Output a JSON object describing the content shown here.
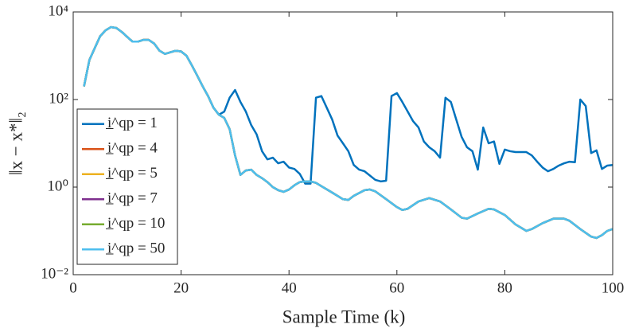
{
  "chart_data": {
    "type": "line",
    "xlabel": "Sample Time (k)",
    "ylabel": "‖x − x*‖₂",
    "xlim": [
      0,
      100
    ],
    "xticks": [
      0,
      20,
      40,
      60,
      80,
      100
    ],
    "ylim": [
      0.01,
      10000
    ],
    "yscale": "log",
    "yticks": [
      {
        "value": 0.01,
        "label": "10⁻²"
      },
      {
        "value": 1,
        "label": "10⁰"
      },
      {
        "value": 100,
        "label": "10²"
      },
      {
        "value": 10000,
        "label": "10⁴"
      }
    ],
    "grid": false,
    "legend": "lower left",
    "series": [
      {
        "name": "i̲^qp = 1",
        "color": "#0072bd",
        "x": [
          2,
          3,
          4,
          5,
          6,
          7,
          8,
          9,
          10,
          11,
          12,
          13,
          14,
          15,
          16,
          17,
          18,
          19,
          20,
          21,
          22,
          23,
          24,
          25,
          26,
          27,
          28,
          29,
          30,
          31,
          32,
          33,
          34,
          35,
          36,
          37,
          38,
          39,
          40,
          41,
          42,
          43,
          44,
          45,
          46,
          47,
          48,
          49,
          50,
          51,
          52,
          53,
          54,
          56,
          57,
          58,
          59,
          60,
          61,
          62,
          63,
          64,
          65,
          66,
          67,
          68,
          69,
          70,
          71,
          72,
          73,
          74,
          75,
          76,
          77,
          78,
          79,
          80,
          81,
          82,
          84,
          85,
          86,
          87,
          88,
          89,
          90,
          91,
          92,
          93,
          94,
          95,
          96,
          97,
          98,
          99,
          100
        ],
        "values": [
          200,
          800,
          1500,
          2800,
          3800,
          4500,
          4300,
          3500,
          2700,
          2100,
          2100,
          2300,
          2300,
          1900,
          1300,
          1100,
          1200,
          1300,
          1250,
          1000,
          600,
          350,
          200,
          120,
          65,
          45,
          53,
          110,
          165,
          88,
          53,
          26,
          16,
          6.6,
          4.3,
          4.7,
          3.5,
          3.8,
          2.8,
          2.6,
          2.0,
          1.2,
          1.2,
          110,
          120,
          65,
          35,
          15,
          10,
          6.6,
          3.2,
          2.5,
          2.3,
          1.46,
          1.35,
          1.4,
          120,
          140,
          88,
          53,
          32,
          23,
          11,
          8.1,
          6.6,
          4.7,
          110,
          88,
          35,
          14,
          8.1,
          6.6,
          2.5,
          23,
          10,
          11,
          3.4,
          7.2,
          6.6,
          6.3,
          6.3,
          5.3,
          3.8,
          2.8,
          2.3,
          2.6,
          3.1,
          3.5,
          3.8,
          3.7,
          100,
          71,
          6.0,
          6.9,
          2.6,
          3.1,
          3.2
        ]
      },
      {
        "name": "i̲^qp = 4",
        "color": "#d95319",
        "x": [
          2,
          3,
          4,
          5,
          6,
          7,
          8,
          9,
          10,
          11,
          12,
          13,
          14,
          15,
          16,
          17,
          18,
          19,
          20,
          21,
          22,
          23,
          24,
          25,
          26,
          27,
          28,
          29,
          30,
          31,
          32,
          33,
          34,
          35,
          36,
          37,
          38,
          39,
          40,
          41,
          42,
          43,
          44,
          45,
          46,
          48,
          50,
          51,
          52,
          54,
          55,
          56,
          58,
          60,
          61,
          62,
          64,
          66,
          68,
          70,
          72,
          73,
          75,
          77,
          78,
          80,
          82,
          84,
          85,
          87,
          89,
          91,
          92,
          94,
          96,
          97,
          98,
          99,
          100
        ],
        "values": [
          200,
          800,
          1500,
          2800,
          3800,
          4500,
          4300,
          3500,
          2700,
          2100,
          2100,
          2300,
          2300,
          1900,
          1300,
          1100,
          1200,
          1300,
          1250,
          1000,
          600,
          350,
          200,
          120,
          65,
          45,
          38,
          21,
          5.3,
          1.9,
          2.4,
          2.5,
          1.9,
          1.6,
          1.3,
          1.0,
          0.85,
          0.78,
          0.88,
          1.1,
          1.3,
          1.35,
          1.35,
          1.25,
          1.05,
          0.75,
          0.53,
          0.51,
          0.63,
          0.85,
          0.88,
          0.8,
          0.53,
          0.35,
          0.3,
          0.32,
          0.47,
          0.56,
          0.47,
          0.31,
          0.2,
          0.19,
          0.25,
          0.32,
          0.31,
          0.23,
          0.14,
          0.1,
          0.11,
          0.15,
          0.19,
          0.19,
          0.17,
          0.11,
          0.074,
          0.069,
          0.08,
          0.1,
          0.11
        ]
      },
      {
        "name": "i̲^qp = 5",
        "color": "#edb120",
        "x": [
          2,
          3,
          4,
          5,
          6,
          7,
          8,
          9,
          10,
          11,
          12,
          13,
          14,
          15,
          16,
          17,
          18,
          19,
          20,
          21,
          22,
          23,
          24,
          25,
          26,
          27,
          28,
          29,
          30,
          31,
          32,
          33,
          34,
          35,
          36,
          37,
          38,
          39,
          40,
          41,
          42,
          43,
          44,
          45,
          46,
          48,
          50,
          51,
          52,
          54,
          55,
          56,
          58,
          60,
          61,
          62,
          64,
          66,
          68,
          70,
          72,
          73,
          75,
          77,
          78,
          80,
          82,
          84,
          85,
          87,
          89,
          91,
          92,
          94,
          96,
          97,
          98,
          99,
          100
        ],
        "values": [
          200,
          800,
          1500,
          2800,
          3800,
          4500,
          4300,
          3500,
          2700,
          2100,
          2100,
          2300,
          2300,
          1900,
          1300,
          1100,
          1200,
          1300,
          1250,
          1000,
          600,
          350,
          200,
          120,
          65,
          45,
          38,
          21,
          5.3,
          1.9,
          2.4,
          2.5,
          1.9,
          1.6,
          1.3,
          1.0,
          0.85,
          0.78,
          0.88,
          1.1,
          1.3,
          1.35,
          1.35,
          1.25,
          1.05,
          0.75,
          0.53,
          0.51,
          0.63,
          0.85,
          0.88,
          0.8,
          0.53,
          0.35,
          0.3,
          0.32,
          0.47,
          0.56,
          0.47,
          0.31,
          0.2,
          0.19,
          0.25,
          0.32,
          0.31,
          0.23,
          0.14,
          0.1,
          0.11,
          0.15,
          0.19,
          0.19,
          0.17,
          0.11,
          0.074,
          0.069,
          0.08,
          0.1,
          0.11
        ]
      },
      {
        "name": "i̲^qp = 7",
        "color": "#7e2f8e",
        "x": [
          2,
          3,
          4,
          5,
          6,
          7,
          8,
          9,
          10,
          11,
          12,
          13,
          14,
          15,
          16,
          17,
          18,
          19,
          20,
          21,
          22,
          23,
          24,
          25,
          26,
          27,
          28,
          29,
          30,
          31,
          32,
          33,
          34,
          35,
          36,
          37,
          38,
          39,
          40,
          41,
          42,
          43,
          44,
          45,
          46,
          48,
          50,
          51,
          52,
          54,
          55,
          56,
          58,
          60,
          61,
          62,
          64,
          66,
          68,
          70,
          72,
          73,
          75,
          77,
          78,
          80,
          82,
          84,
          85,
          87,
          89,
          91,
          92,
          94,
          96,
          97,
          98,
          99,
          100
        ],
        "values": [
          200,
          800,
          1500,
          2800,
          3800,
          4500,
          4300,
          3500,
          2700,
          2100,
          2100,
          2300,
          2300,
          1900,
          1300,
          1100,
          1200,
          1300,
          1250,
          1000,
          600,
          350,
          200,
          120,
          65,
          45,
          38,
          21,
          5.3,
          1.9,
          2.4,
          2.5,
          1.9,
          1.6,
          1.3,
          1.0,
          0.85,
          0.78,
          0.88,
          1.1,
          1.3,
          1.35,
          1.35,
          1.25,
          1.05,
          0.75,
          0.53,
          0.51,
          0.63,
          0.85,
          0.88,
          0.8,
          0.53,
          0.35,
          0.3,
          0.32,
          0.47,
          0.56,
          0.47,
          0.31,
          0.2,
          0.19,
          0.25,
          0.32,
          0.31,
          0.23,
          0.14,
          0.1,
          0.11,
          0.15,
          0.19,
          0.19,
          0.17,
          0.11,
          0.074,
          0.069,
          0.08,
          0.1,
          0.11
        ]
      },
      {
        "name": "i̲^qp = 10",
        "color": "#77ac30",
        "x": [
          2,
          3,
          4,
          5,
          6,
          7,
          8,
          9,
          10,
          11,
          12,
          13,
          14,
          15,
          16,
          17,
          18,
          19,
          20,
          21,
          22,
          23,
          24,
          25,
          26,
          27,
          28,
          29,
          30,
          31,
          32,
          33,
          34,
          35,
          36,
          37,
          38,
          39,
          40,
          41,
          42,
          43,
          44,
          45,
          46,
          48,
          50,
          51,
          52,
          54,
          55,
          56,
          58,
          60,
          61,
          62,
          64,
          66,
          68,
          70,
          72,
          73,
          75,
          77,
          78,
          80,
          82,
          84,
          85,
          87,
          89,
          91,
          92,
          94,
          96,
          97,
          98,
          99,
          100
        ],
        "values": [
          200,
          800,
          1500,
          2800,
          3800,
          4500,
          4300,
          3500,
          2700,
          2100,
          2100,
          2300,
          2300,
          1900,
          1300,
          1100,
          1200,
          1300,
          1250,
          1000,
          600,
          350,
          200,
          120,
          65,
          45,
          38,
          21,
          5.3,
          1.9,
          2.4,
          2.5,
          1.9,
          1.6,
          1.3,
          1.0,
          0.85,
          0.78,
          0.88,
          1.1,
          1.3,
          1.35,
          1.35,
          1.25,
          1.05,
          0.75,
          0.53,
          0.51,
          0.63,
          0.85,
          0.88,
          0.8,
          0.53,
          0.35,
          0.3,
          0.32,
          0.47,
          0.56,
          0.47,
          0.31,
          0.2,
          0.19,
          0.25,
          0.32,
          0.31,
          0.23,
          0.14,
          0.1,
          0.11,
          0.15,
          0.19,
          0.19,
          0.17,
          0.11,
          0.074,
          0.069,
          0.08,
          0.1,
          0.11
        ]
      },
      {
        "name": "i̲^qp = 50",
        "color": "#4dbeee",
        "x": [
          2,
          3,
          4,
          5,
          6,
          7,
          8,
          9,
          10,
          11,
          12,
          13,
          14,
          15,
          16,
          17,
          18,
          19,
          20,
          21,
          22,
          23,
          24,
          25,
          26,
          27,
          28,
          29,
          30,
          31,
          32,
          33,
          34,
          35,
          36,
          37,
          38,
          39,
          40,
          41,
          42,
          43,
          44,
          45,
          46,
          48,
          50,
          51,
          52,
          54,
          55,
          56,
          58,
          60,
          61,
          62,
          64,
          66,
          68,
          70,
          72,
          73,
          75,
          77,
          78,
          80,
          82,
          84,
          85,
          87,
          89,
          91,
          92,
          94,
          96,
          97,
          98,
          99,
          100
        ],
        "values": [
          200,
          800,
          1500,
          2800,
          3800,
          4500,
          4300,
          3500,
          2700,
          2100,
          2100,
          2300,
          2300,
          1900,
          1300,
          1100,
          1200,
          1300,
          1250,
          1000,
          600,
          350,
          200,
          120,
          65,
          45,
          38,
          21,
          5.3,
          1.9,
          2.4,
          2.5,
          1.9,
          1.6,
          1.3,
          1.0,
          0.85,
          0.78,
          0.88,
          1.1,
          1.3,
          1.35,
          1.35,
          1.25,
          1.05,
          0.75,
          0.53,
          0.51,
          0.63,
          0.85,
          0.88,
          0.8,
          0.53,
          0.35,
          0.3,
          0.32,
          0.47,
          0.56,
          0.47,
          0.31,
          0.2,
          0.19,
          0.25,
          0.32,
          0.31,
          0.23,
          0.14,
          0.1,
          0.11,
          0.15,
          0.19,
          0.19,
          0.17,
          0.11,
          0.074,
          0.069,
          0.08,
          0.1,
          0.11
        ]
      }
    ]
  }
}
